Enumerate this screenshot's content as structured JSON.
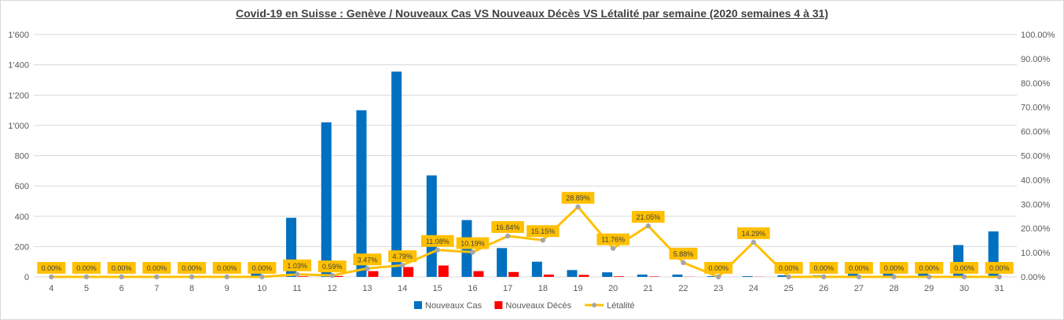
{
  "chart_data": {
    "type": "bar",
    "title": "Covid-19 en Suisse :  Genève / Nouveaux Cas VS Nouveaux Décès VS Létalité par semaine (2020 semaines 4 à 31)",
    "categories": [
      "4",
      "5",
      "6",
      "7",
      "8",
      "9",
      "10",
      "11",
      "12",
      "13",
      "14",
      "15",
      "16",
      "17",
      "18",
      "19",
      "20",
      "21",
      "22",
      "23",
      "24",
      "25",
      "26",
      "27",
      "28",
      "29",
      "30",
      "31"
    ],
    "series": [
      {
        "name": "Nouveaux Cas",
        "type": "bar",
        "axis": "left",
        "color": "#0070c0",
        "values": [
          0,
          0,
          0,
          0,
          0,
          5,
          30,
          390,
          1020,
          1100,
          1355,
          670,
          375,
          190,
          100,
          45,
          30,
          15,
          15,
          5,
          5,
          10,
          10,
          20,
          35,
          40,
          210,
          300
        ]
      },
      {
        "name": "Nouveaux Décès",
        "type": "bar",
        "axis": "left",
        "color": "#ff0000",
        "values": [
          0,
          0,
          0,
          0,
          0,
          0,
          0,
          4,
          6,
          38,
          65,
          75,
          38,
          32,
          15,
          13,
          4,
          3,
          1,
          0,
          1,
          0,
          0,
          0,
          0,
          0,
          0,
          0
        ]
      },
      {
        "name": "Létalité",
        "type": "line",
        "axis": "right",
        "color": "#ffc000",
        "values": [
          0,
          0,
          0,
          0,
          0,
          0,
          0,
          1.03,
          0.59,
          3.47,
          4.79,
          11.08,
          10.19,
          16.84,
          15.15,
          28.89,
          11.76,
          21.05,
          5.88,
          0,
          14.29,
          0,
          0,
          0,
          0,
          0,
          0,
          0
        ],
        "labels": [
          "0.00%",
          "0.00%",
          "0.00%",
          "0.00%",
          "0.00%",
          "0.00%",
          "0.00%",
          "1.03%",
          "0.59%",
          "3.47%",
          "4.79%",
          "11.08%",
          "10.19%",
          "16.84%",
          "15.15%",
          "28.89%",
          "11.76%",
          "21.05%",
          "5.88%",
          "0.00%",
          "14.29%",
          "0.00%",
          "0.00%",
          "0.00%",
          "0.00%",
          "0.00%",
          "0.00%",
          "0.00%"
        ]
      }
    ],
    "y_left": {
      "min": 0,
      "max": 1600,
      "ticks": [
        "0",
        "200",
        "400",
        "600",
        "800",
        "1'000",
        "1'200",
        "1'400",
        "1'600"
      ]
    },
    "y_right": {
      "min": 0,
      "max": 100,
      "ticks": [
        "0.00%",
        "10.00%",
        "20.00%",
        "30.00%",
        "40.00%",
        "50.00%",
        "60.00%",
        "70.00%",
        "80.00%",
        "90.00%",
        "100.00%"
      ]
    },
    "grid": true,
    "legend_position": "bottom",
    "label_box_color": "#ffc000",
    "marker_color": "#a6a6a6"
  }
}
